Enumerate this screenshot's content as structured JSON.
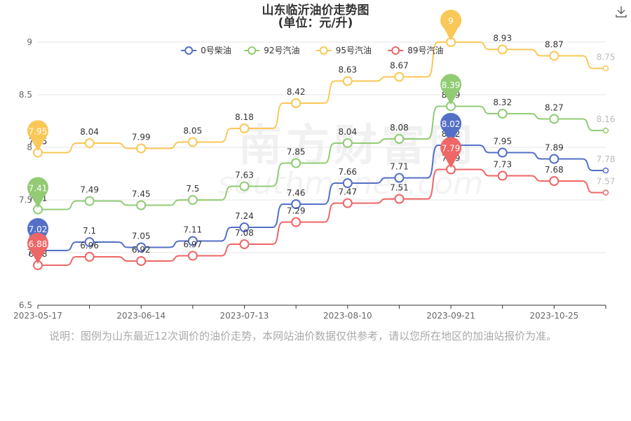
{
  "page": {
    "title_line1": "山东临沂油价走势图",
    "title_line2": "(单位：元/升)",
    "download_icon": "download-icon",
    "note": "说明：图例为山东最近12次调价的油价走势，本网站油价数据仅供参考，请以您所在地区的加油站报价为准。",
    "watermark_cn": "南方财富网",
    "watermark_en": "southmoney.com"
  },
  "chart_data": {
    "type": "line",
    "title": "山东临沂油价走势图",
    "subtitle": "(单位：元/升)",
    "xlabel": "",
    "ylabel": "",
    "ylim": [
      6.5,
      9
    ],
    "yticks": [
      6.5,
      7,
      7.5,
      8,
      8.5,
      9
    ],
    "y_tick_labels": [
      "6.5",
      "7",
      "7.5",
      "8",
      "8.5",
      "9"
    ],
    "x_tick_labels": [
      "2023-05-17",
      "2023-06-14",
      "2023-07-13",
      "2023-08-10",
      "2023-09-21",
      "2023-10-25"
    ],
    "x_tick_indices": [
      0,
      2,
      4,
      6,
      8,
      10
    ],
    "x_points": 12,
    "grid": true,
    "legend_position": "top-center",
    "series": [
      {
        "name": "0号柴油",
        "color": "#5470c6",
        "values": [
          7.02,
          7.1,
          7.05,
          7.11,
          7.24,
          7.46,
          7.66,
          7.71,
          8.02,
          7.95,
          7.89,
          7.78
        ],
        "max_index": 8,
        "min_index": 0
      },
      {
        "name": "92号汽油",
        "color": "#91cc75",
        "values": [
          7.41,
          7.49,
          7.45,
          7.5,
          7.63,
          7.85,
          8.04,
          8.08,
          8.39,
          8.32,
          8.27,
          8.16
        ],
        "max_index": 8,
        "min_index": 0
      },
      {
        "name": "95号汽油",
        "color": "#fac858",
        "values": [
          7.95,
          8.04,
          7.99,
          8.05,
          8.18,
          8.42,
          8.63,
          8.67,
          9,
          8.93,
          8.87,
          8.75
        ],
        "max_index": 8,
        "min_index": 0
      },
      {
        "name": "89号汽油",
        "color": "#ee6666",
        "values": [
          6.88,
          6.96,
          6.92,
          6.97,
          7.08,
          7.29,
          7.47,
          7.51,
          7.79,
          7.73,
          7.68,
          7.57
        ],
        "max_index": 8,
        "min_index": 0
      }
    ]
  }
}
